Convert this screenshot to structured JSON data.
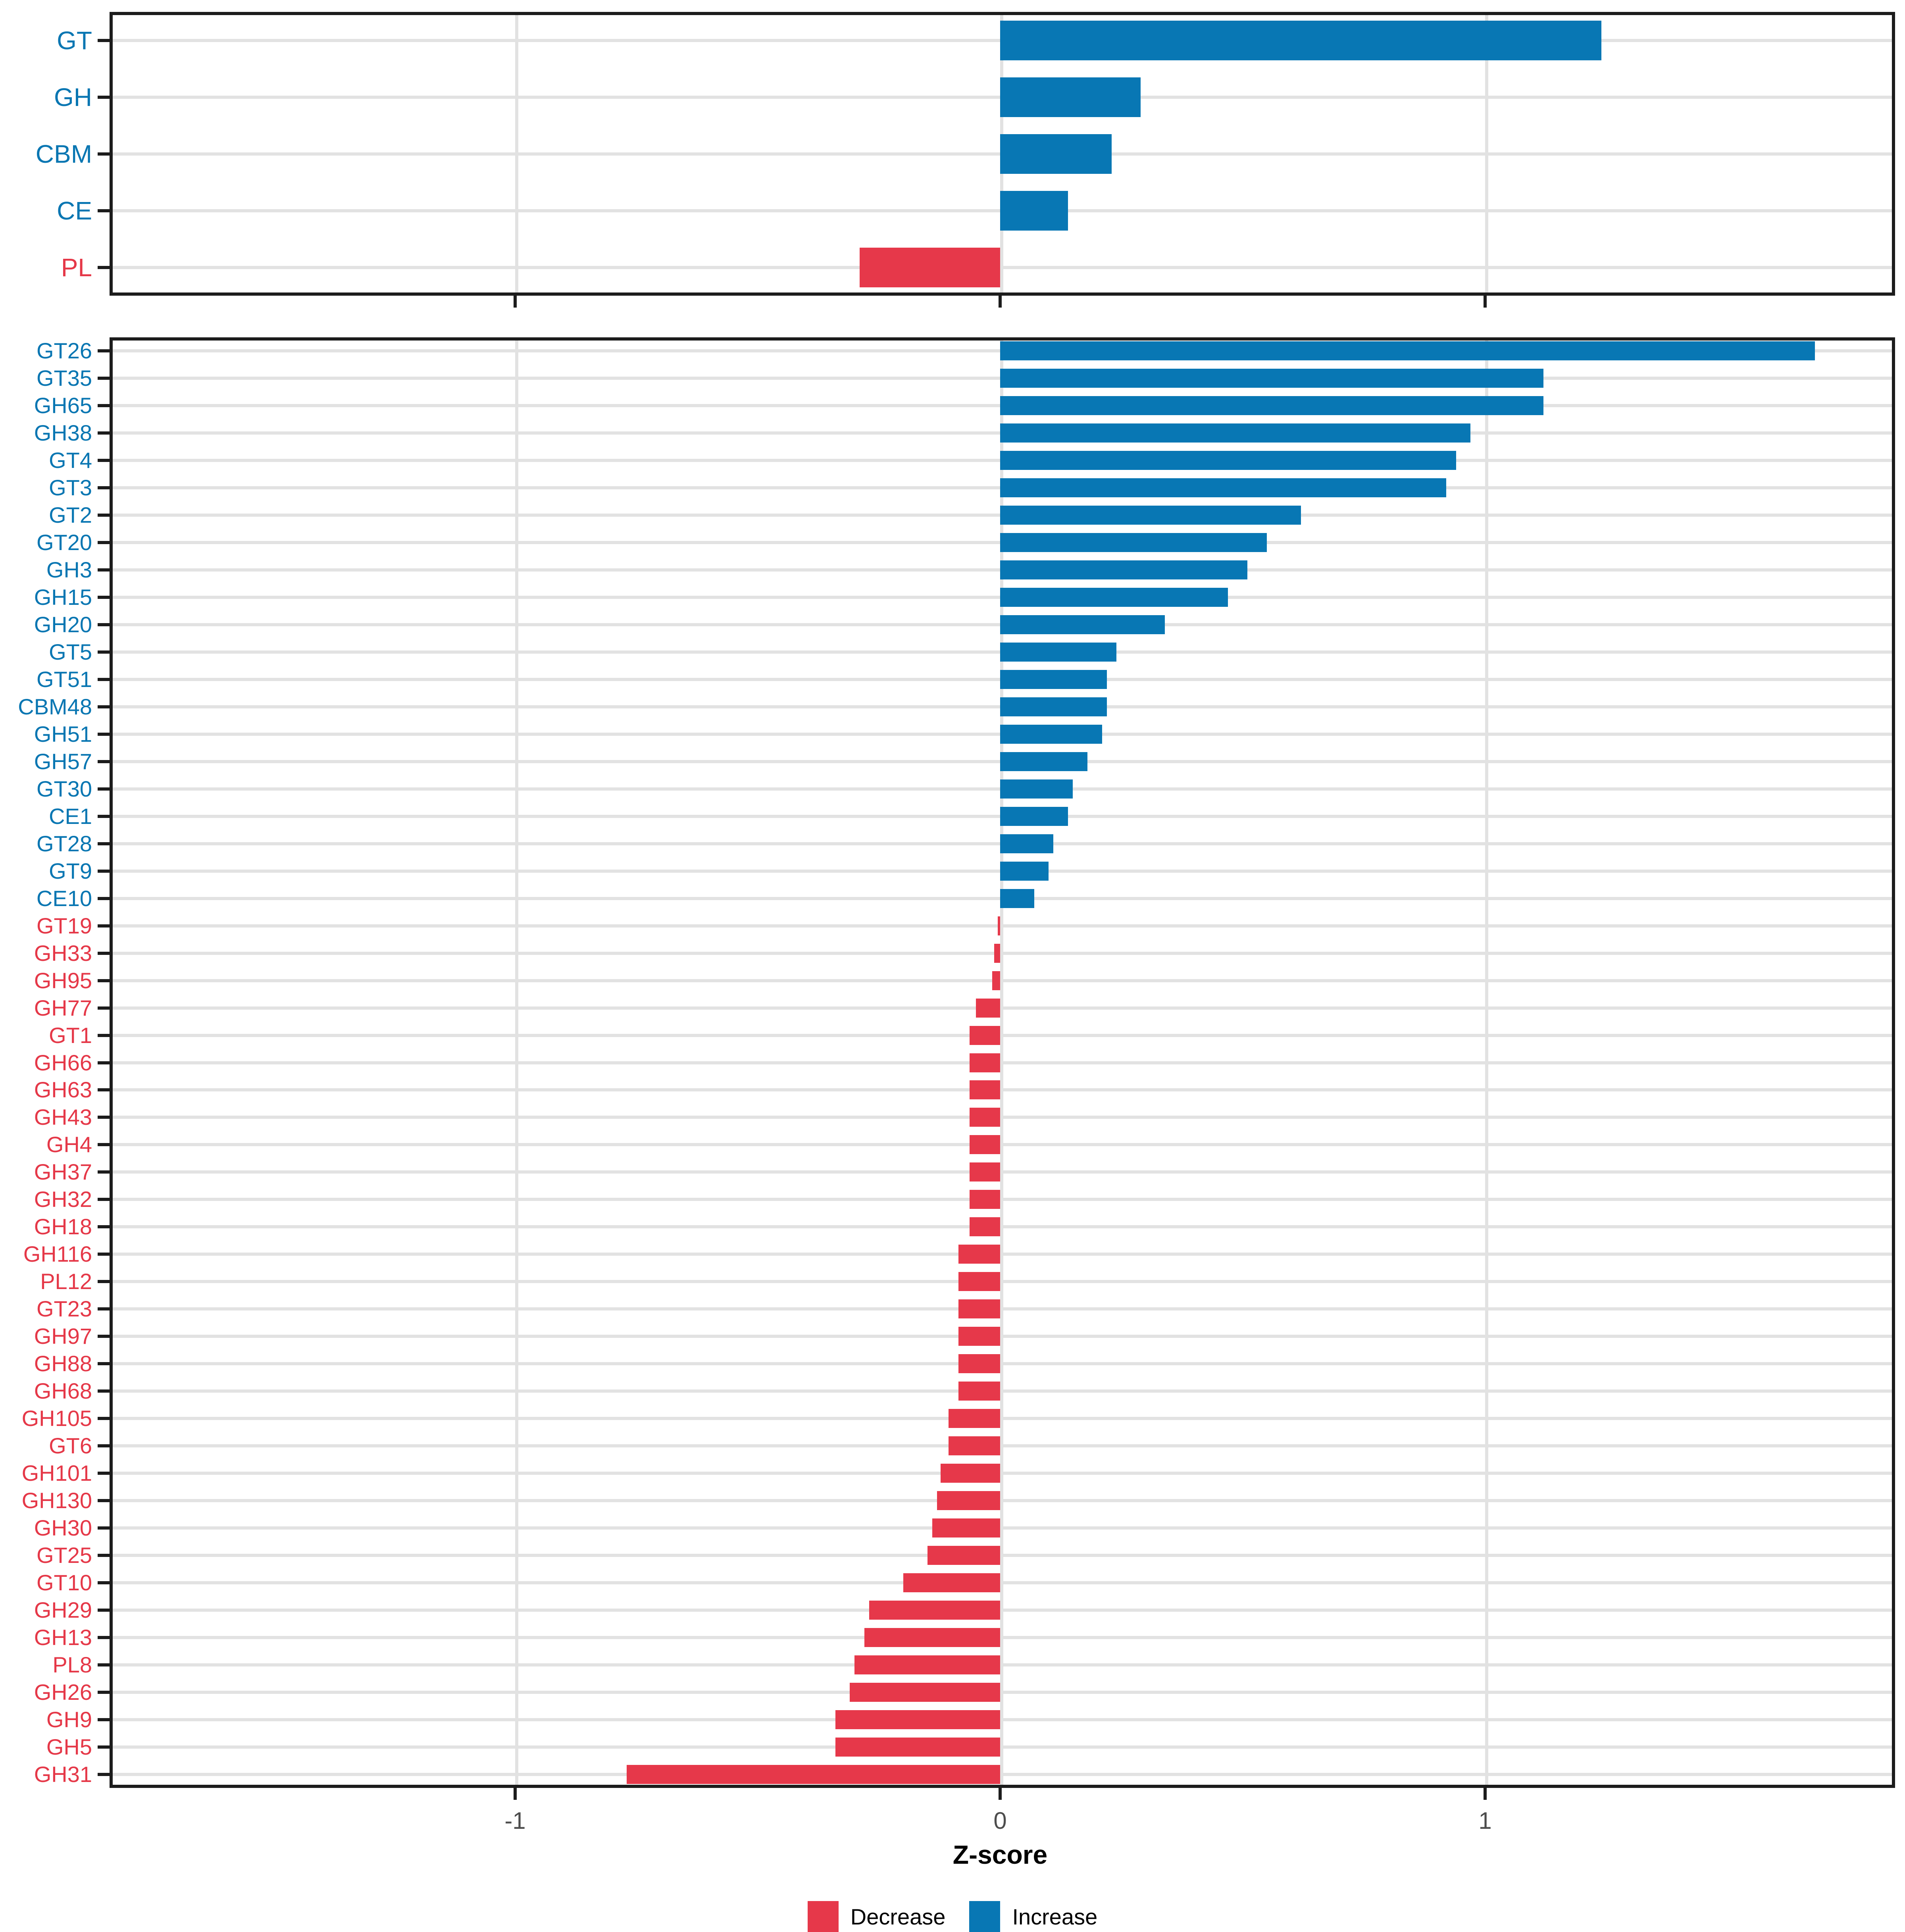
{
  "colors": {
    "increase": "#0877b4",
    "decrease": "#e6384a",
    "label_increase": "#0876b2",
    "label_decrease": "#e53848",
    "gridline": "#e2e2e2",
    "panel_border": "#1c1c1c",
    "tick_label": "#4d4d4d"
  },
  "xaxis": {
    "label": "Z-score",
    "ticks": [
      -1,
      0,
      1
    ],
    "tick_labels": [
      "-1",
      "0",
      "1"
    ],
    "range": [
      -1.84,
      1.85
    ]
  },
  "legend": {
    "items": [
      {
        "label": "Decrease",
        "color": "#e6384a"
      },
      {
        "label": "Increase",
        "color": "#0877b4"
      }
    ]
  },
  "chart_data": [
    {
      "type": "bar",
      "orientation": "horizontal",
      "panel": "top",
      "title": "",
      "xlabel": "Z-score",
      "grid": true,
      "legend_position": "bottom",
      "categories": [
        "GT",
        "GH",
        "CBM",
        "CE",
        "PL"
      ],
      "values": [
        1.24,
        0.29,
        0.23,
        0.14,
        -0.29
      ]
    },
    {
      "type": "bar",
      "orientation": "horizontal",
      "panel": "bottom",
      "title": "",
      "xlabel": "Z-score",
      "grid": true,
      "legend_position": "bottom",
      "categories": [
        "GT26",
        "GT35",
        "GH65",
        "GH38",
        "GT4",
        "GT3",
        "GT2",
        "GT20",
        "GH3",
        "GH15",
        "GH20",
        "GT5",
        "GT51",
        "CBM48",
        "GH51",
        "GH57",
        "GT30",
        "CE1",
        "GT28",
        "GT9",
        "CE10",
        "GT19",
        "GH33",
        "GH95",
        "GH77",
        "GT1",
        "GH66",
        "GH63",
        "GH43",
        "GH4",
        "GH37",
        "GH32",
        "GH18",
        "GH116",
        "PL12",
        "GT23",
        "GH97",
        "GH88",
        "GH68",
        "GH105",
        "GT6",
        "GH101",
        "GH130",
        "GH30",
        "GT25",
        "GT10",
        "GH29",
        "GH13",
        "PL8",
        "GH26",
        "GH9",
        "GH5",
        "GH31"
      ],
      "values": [
        1.68,
        1.12,
        1.12,
        0.97,
        0.94,
        0.92,
        0.62,
        0.55,
        0.51,
        0.47,
        0.34,
        0.24,
        0.22,
        0.22,
        0.21,
        0.18,
        0.15,
        0.14,
        0.11,
        0.1,
        0.07,
        -0.005,
        -0.012,
        -0.016,
        -0.05,
        -0.063,
        -0.063,
        -0.063,
        -0.063,
        -0.063,
        -0.063,
        -0.063,
        -0.063,
        -0.086,
        -0.086,
        -0.086,
        -0.086,
        -0.086,
        -0.086,
        -0.106,
        -0.106,
        -0.123,
        -0.13,
        -0.14,
        -0.15,
        -0.2,
        -0.27,
        -0.28,
        -0.3,
        -0.31,
        -0.34,
        -0.34,
        -0.77
      ]
    }
  ]
}
